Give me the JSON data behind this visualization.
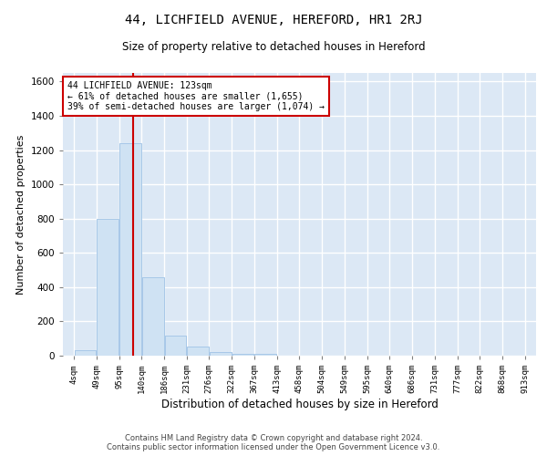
{
  "title": "44, LICHFIELD AVENUE, HEREFORD, HR1 2RJ",
  "subtitle": "Size of property relative to detached houses in Hereford",
  "xlabel": "Distribution of detached houses by size in Hereford",
  "ylabel": "Number of detached properties",
  "footer_line1": "Contains HM Land Registry data © Crown copyright and database right 2024.",
  "footer_line2": "Contains public sector information licensed under the Open Government Licence v3.0.",
  "bar_color": "#cfe2f3",
  "bar_edge_color": "#a8c8e8",
  "background_color": "#dce8f5",
  "grid_color": "#ffffff",
  "annotation_box_color": "#cc0000",
  "property_line_color": "#cc0000",
  "annotation_text_line1": "44 LICHFIELD AVENUE: 123sqm",
  "annotation_text_line2": "← 61% of detached houses are smaller (1,655)",
  "annotation_text_line3": "39% of semi-detached houses are larger (1,074) →",
  "property_sqm": 123,
  "bin_edges": [
    4,
    49,
    95,
    140,
    186,
    231,
    276,
    322,
    367,
    413,
    458,
    504,
    549,
    595,
    640,
    686,
    731,
    777,
    822,
    868,
    913
  ],
  "bin_labels": [
    "4sqm",
    "49sqm",
    "95sqm",
    "140sqm",
    "186sqm",
    "231sqm",
    "276sqm",
    "322sqm",
    "367sqm",
    "413sqm",
    "458sqm",
    "504sqm",
    "549sqm",
    "595sqm",
    "640sqm",
    "686sqm",
    "731sqm",
    "777sqm",
    "822sqm",
    "868sqm",
    "913sqm"
  ],
  "bar_heights": [
    30,
    800,
    1240,
    460,
    115,
    55,
    20,
    12,
    10,
    0,
    0,
    0,
    0,
    0,
    0,
    0,
    0,
    0,
    0,
    0
  ],
  "ylim": [
    0,
    1650
  ],
  "yticks": [
    0,
    200,
    400,
    600,
    800,
    1000,
    1200,
    1400,
    1600
  ]
}
